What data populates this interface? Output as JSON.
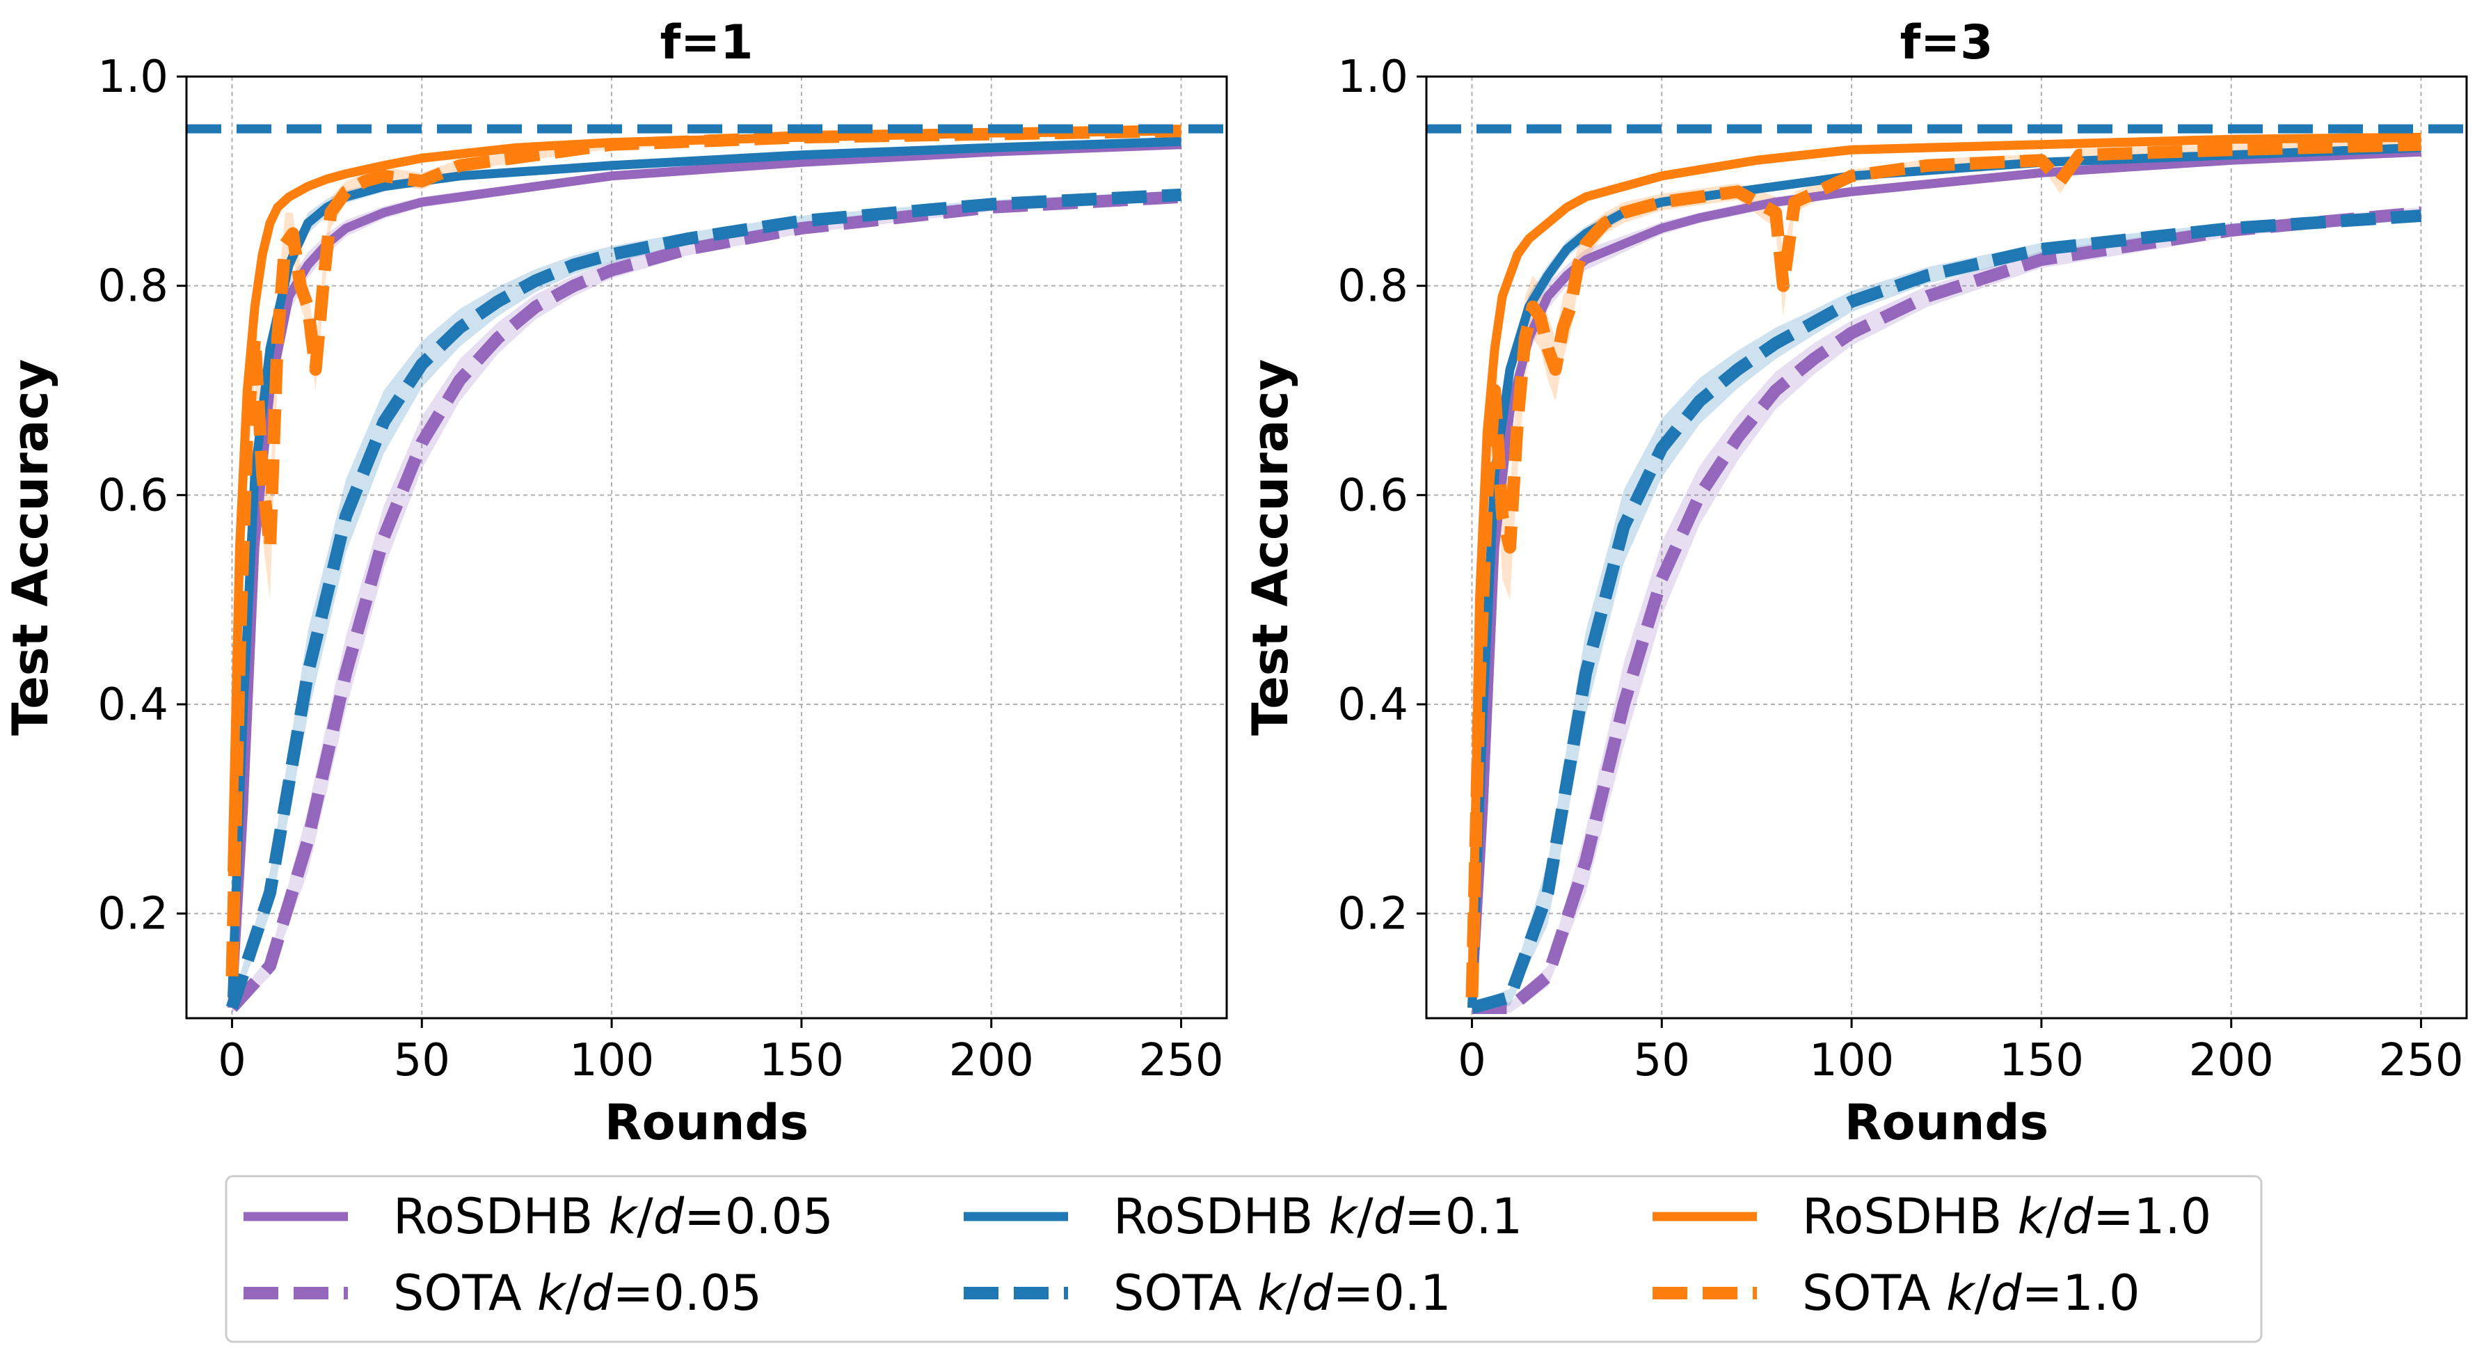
{
  "chart_data": [
    {
      "type": "line",
      "title": "f=1",
      "xlabel": "Rounds",
      "ylabel": "Test Accuracy",
      "xlim": [
        -12,
        262
      ],
      "ylim": [
        0.1,
        1.0
      ],
      "xticks": [
        "0",
        "50",
        "100",
        "150",
        "200",
        "250"
      ],
      "yticks": [
        "0.2",
        "0.4",
        "0.6",
        "0.8",
        "1.0"
      ],
      "grid": true,
      "reference_line": {
        "y": 0.95,
        "style": "dashed",
        "color": "#1f77b4"
      },
      "series": [
        {
          "name": "RoSDHB k/d=0.05",
          "color": "#9467bd",
          "dash": false,
          "x": [
            0,
            3,
            6,
            10,
            15,
            20,
            25,
            30,
            40,
            50,
            60,
            80,
            100,
            150,
            200,
            250
          ],
          "y": [
            0.11,
            0.3,
            0.55,
            0.7,
            0.79,
            0.82,
            0.84,
            0.855,
            0.87,
            0.88,
            0.885,
            0.895,
            0.905,
            0.918,
            0.928,
            0.935
          ],
          "band": [
            0.008,
            0.02,
            0.02,
            0.02,
            0.015,
            0.012,
            0.01,
            0.008,
            0.006,
            0.005,
            0.005,
            0.004,
            0.004,
            0.003,
            0.003,
            0.003
          ]
        },
        {
          "name": "SOTA k/d=0.05",
          "color": "#9467bd",
          "dash": true,
          "x": [
            0,
            10,
            20,
            30,
            40,
            50,
            60,
            70,
            80,
            90,
            100,
            120,
            150,
            200,
            250
          ],
          "y": [
            0.11,
            0.15,
            0.27,
            0.43,
            0.56,
            0.65,
            0.71,
            0.75,
            0.78,
            0.8,
            0.815,
            0.835,
            0.855,
            0.875,
            0.885
          ],
          "band": [
            0.005,
            0.01,
            0.03,
            0.035,
            0.03,
            0.025,
            0.02,
            0.015,
            0.012,
            0.01,
            0.008,
            0.006,
            0.005,
            0.004,
            0.004
          ]
        },
        {
          "name": "RoSDHB k/d=0.1",
          "color": "#1f77b4",
          "dash": false,
          "x": [
            0,
            3,
            6,
            10,
            15,
            20,
            25,
            30,
            40,
            50,
            60,
            80,
            100,
            150,
            200,
            250
          ],
          "y": [
            0.12,
            0.4,
            0.62,
            0.74,
            0.82,
            0.86,
            0.875,
            0.885,
            0.895,
            0.9,
            0.905,
            0.91,
            0.915,
            0.925,
            0.932,
            0.938
          ],
          "band": [
            0.008,
            0.02,
            0.02,
            0.015,
            0.012,
            0.01,
            0.008,
            0.006,
            0.005,
            0.004,
            0.004,
            0.003,
            0.003,
            0.003,
            0.003,
            0.003
          ]
        },
        {
          "name": "SOTA k/d=0.1",
          "color": "#1f77b4",
          "dash": true,
          "x": [
            0,
            10,
            20,
            30,
            40,
            50,
            60,
            70,
            80,
            90,
            100,
            120,
            150,
            200,
            250
          ],
          "y": [
            0.11,
            0.22,
            0.43,
            0.58,
            0.67,
            0.725,
            0.76,
            0.785,
            0.805,
            0.82,
            0.83,
            0.845,
            0.862,
            0.878,
            0.887
          ],
          "band": [
            0.005,
            0.02,
            0.04,
            0.035,
            0.03,
            0.022,
            0.018,
            0.014,
            0.011,
            0.009,
            0.008,
            0.006,
            0.005,
            0.004,
            0.004
          ]
        },
        {
          "name": "RoSDHB k/d=1.0",
          "color": "#ff7f0e",
          "dash": false,
          "x": [
            0,
            2,
            4,
            6,
            8,
            10,
            12,
            15,
            20,
            25,
            30,
            40,
            50,
            75,
            100,
            150,
            200,
            250
          ],
          "y": [
            0.24,
            0.55,
            0.7,
            0.78,
            0.83,
            0.86,
            0.875,
            0.885,
            0.895,
            0.902,
            0.907,
            0.915,
            0.922,
            0.932,
            0.937,
            0.942,
            0.946,
            0.948
          ],
          "band": [
            0.01,
            0.01,
            0.01,
            0.008,
            0.006,
            0.005,
            0.004,
            0.004,
            0.003,
            0.003,
            0.003,
            0.003,
            0.003,
            0.002,
            0.002,
            0.002,
            0.002,
            0.002
          ]
        },
        {
          "name": "SOTA k/d=1.0",
          "color": "#ff7f0e",
          "dash": true,
          "x": [
            0,
            2,
            4,
            6,
            8,
            10,
            12,
            14,
            16,
            18,
            20,
            22,
            24,
            26,
            30,
            35,
            40,
            50,
            60,
            80,
            100,
            150,
            200,
            250
          ],
          "y": [
            0.14,
            0.45,
            0.66,
            0.75,
            0.62,
            0.55,
            0.75,
            0.84,
            0.85,
            0.8,
            0.78,
            0.72,
            0.8,
            0.87,
            0.89,
            0.9,
            0.905,
            0.9,
            0.915,
            0.925,
            0.935,
            0.942,
            0.945,
            0.948
          ],
          "band": [
            0.01,
            0.03,
            0.04,
            0.04,
            0.06,
            0.05,
            0.04,
            0.03,
            0.02,
            0.02,
            0.02,
            0.02,
            0.02,
            0.015,
            0.01,
            0.008,
            0.008,
            0.008,
            0.006,
            0.004,
            0.004,
            0.003,
            0.003,
            0.003
          ]
        }
      ]
    },
    {
      "type": "line",
      "title": "f=3",
      "xlabel": "Rounds",
      "ylabel": "Test Accuracy",
      "xlim": [
        -12,
        262
      ],
      "ylim": [
        0.1,
        1.0
      ],
      "xticks": [
        "0",
        "50",
        "100",
        "150",
        "200",
        "250"
      ],
      "yticks": [
        "0.2",
        "0.4",
        "0.6",
        "0.8",
        "1.0"
      ],
      "grid": true,
      "reference_line": {
        "y": 0.95,
        "style": "dashed",
        "color": "#1f77b4"
      },
      "series": [
        {
          "name": "RoSDHB k/d=0.05",
          "color": "#9467bd",
          "dash": false,
          "x": [
            0,
            3,
            6,
            10,
            15,
            20,
            25,
            30,
            40,
            50,
            60,
            80,
            100,
            150,
            200,
            250
          ],
          "y": [
            0.11,
            0.3,
            0.55,
            0.68,
            0.75,
            0.79,
            0.81,
            0.825,
            0.84,
            0.855,
            0.865,
            0.88,
            0.89,
            0.908,
            0.92,
            0.928
          ],
          "band": [
            0.008,
            0.02,
            0.02,
            0.02,
            0.015,
            0.012,
            0.01,
            0.01,
            0.008,
            0.006,
            0.005,
            0.005,
            0.004,
            0.004,
            0.003,
            0.003
          ]
        },
        {
          "name": "SOTA k/d=0.05",
          "color": "#9467bd",
          "dash": true,
          "x": [
            0,
            10,
            20,
            30,
            40,
            50,
            60,
            70,
            80,
            90,
            100,
            120,
            150,
            200,
            250
          ],
          "y": [
            0.11,
            0.11,
            0.14,
            0.25,
            0.4,
            0.52,
            0.6,
            0.655,
            0.7,
            0.73,
            0.755,
            0.79,
            0.825,
            0.853,
            0.87
          ],
          "band": [
            0.004,
            0.005,
            0.01,
            0.03,
            0.04,
            0.035,
            0.028,
            0.022,
            0.018,
            0.015,
            0.012,
            0.01,
            0.008,
            0.006,
            0.005
          ]
        },
        {
          "name": "RoSDHB k/d=0.1",
          "color": "#1f77b4",
          "dash": false,
          "x": [
            0,
            3,
            6,
            10,
            15,
            20,
            25,
            30,
            40,
            50,
            60,
            80,
            100,
            150,
            200,
            250
          ],
          "y": [
            0.11,
            0.4,
            0.62,
            0.72,
            0.78,
            0.81,
            0.835,
            0.85,
            0.87,
            0.88,
            0.885,
            0.895,
            0.905,
            0.918,
            0.925,
            0.932
          ],
          "band": [
            0.008,
            0.02,
            0.02,
            0.015,
            0.012,
            0.01,
            0.008,
            0.007,
            0.006,
            0.005,
            0.004,
            0.004,
            0.003,
            0.003,
            0.003,
            0.003
          ]
        },
        {
          "name": "SOTA k/d=0.1",
          "color": "#1f77b4",
          "dash": true,
          "x": [
            0,
            10,
            20,
            30,
            40,
            50,
            60,
            70,
            80,
            90,
            100,
            120,
            150,
            200,
            250
          ],
          "y": [
            0.11,
            0.12,
            0.22,
            0.43,
            0.57,
            0.645,
            0.69,
            0.72,
            0.745,
            0.765,
            0.785,
            0.81,
            0.835,
            0.855,
            0.867
          ],
          "band": [
            0.004,
            0.008,
            0.03,
            0.04,
            0.035,
            0.028,
            0.022,
            0.018,
            0.015,
            0.012,
            0.01,
            0.008,
            0.006,
            0.005,
            0.004
          ]
        },
        {
          "name": "RoSDHB k/d=1.0",
          "color": "#ff7f0e",
          "dash": false,
          "x": [
            0,
            2,
            4,
            6,
            8,
            10,
            12,
            15,
            20,
            25,
            30,
            40,
            50,
            75,
            100,
            150,
            200,
            250
          ],
          "y": [
            0.12,
            0.5,
            0.66,
            0.74,
            0.79,
            0.81,
            0.83,
            0.845,
            0.86,
            0.875,
            0.885,
            0.895,
            0.905,
            0.92,
            0.93,
            0.935,
            0.94,
            0.942
          ],
          "band": [
            0.01,
            0.01,
            0.01,
            0.008,
            0.006,
            0.005,
            0.005,
            0.004,
            0.004,
            0.003,
            0.003,
            0.003,
            0.003,
            0.002,
            0.002,
            0.002,
            0.002,
            0.002
          ]
        },
        {
          "name": "SOTA k/d=1.0",
          "color": "#ff7f0e",
          "dash": true,
          "x": [
            0,
            2,
            4,
            6,
            8,
            10,
            12,
            14,
            16,
            18,
            20,
            22,
            24,
            26,
            28,
            30,
            35,
            40,
            50,
            60,
            70,
            80,
            82,
            85,
            100,
            120,
            150,
            155,
            160,
            200,
            250
          ],
          "y": [
            0.12,
            0.42,
            0.6,
            0.7,
            0.58,
            0.55,
            0.67,
            0.75,
            0.78,
            0.77,
            0.74,
            0.72,
            0.76,
            0.78,
            0.82,
            0.84,
            0.86,
            0.87,
            0.88,
            0.885,
            0.89,
            0.87,
            0.8,
            0.88,
            0.905,
            0.915,
            0.92,
            0.9,
            0.925,
            0.93,
            0.935
          ],
          "band": [
            0.01,
            0.03,
            0.04,
            0.05,
            0.06,
            0.05,
            0.05,
            0.04,
            0.03,
            0.03,
            0.03,
            0.03,
            0.03,
            0.025,
            0.02,
            0.015,
            0.01,
            0.01,
            0.008,
            0.008,
            0.008,
            0.015,
            0.03,
            0.01,
            0.006,
            0.006,
            0.006,
            0.012,
            0.006,
            0.005,
            0.005
          ]
        }
      ]
    }
  ],
  "legend": [
    [
      {
        "label": "RoSDHB ",
        "k": "k",
        "slash": "/",
        "d": "d",
        "value": "=0.05",
        "color": "#9467bd",
        "dash": false
      },
      {
        "label": "SOTA ",
        "k": "k",
        "slash": "/",
        "d": "d",
        "value": "=0.05",
        "color": "#9467bd",
        "dash": true
      }
    ],
    [
      {
        "label": "RoSDHB ",
        "k": "k",
        "slash": "/",
        "d": "d",
        "value": "=0.1",
        "color": "#1f77b4",
        "dash": false
      },
      {
        "label": "SOTA ",
        "k": "k",
        "slash": "/",
        "d": "d",
        "value": "=0.1",
        "color": "#1f77b4",
        "dash": true
      }
    ],
    [
      {
        "label": "RoSDHB ",
        "k": "k",
        "slash": "/",
        "d": "d",
        "value": "=1.0",
        "color": "#ff7f0e",
        "dash": false
      },
      {
        "label": "SOTA ",
        "k": "k",
        "slash": "/",
        "d": "d",
        "value": "=1.0",
        "color": "#ff7f0e",
        "dash": true
      }
    ]
  ]
}
